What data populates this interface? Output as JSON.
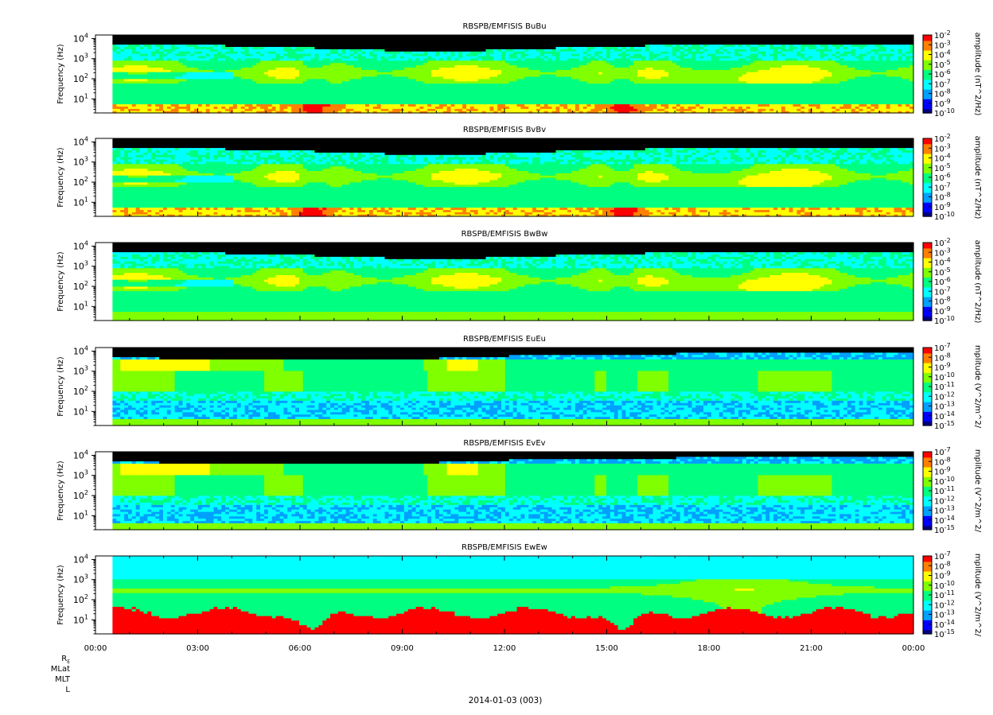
{
  "chart_data": {
    "type": "heatmap",
    "date_label": "2014-01-03 (003)",
    "time_ticks": [
      "00:00",
      "03:00",
      "06:00",
      "09:00",
      "12:00",
      "15:00",
      "18:00",
      "21:00",
      "00:00"
    ],
    "xlim_hours": [
      0,
      24
    ],
    "data_start_hours": 0.5,
    "orbit_labels": [
      "R",
      "MLat",
      "MLT",
      "L"
    ],
    "orbit_subscript": "E",
    "colormap": [
      "#000080",
      "#0000ff",
      "#00a0ff",
      "#00ffff",
      "#00ff80",
      "#80ff00",
      "#ffff00",
      "#ff8000",
      "#ff0000"
    ],
    "panels": [
      {
        "title": "RBSPB/EMFISIS  BuBu",
        "ylabel": "Frequency (Hz)",
        "yticks": [
          {
            "base": "10",
            "exp": "1"
          },
          {
            "base": "10",
            "exp": "2"
          },
          {
            "base": "10",
            "exp": "3"
          },
          {
            "base": "10",
            "exp": "4"
          }
        ],
        "ylim_hz": [
          2,
          15000
        ],
        "colorbar_label": "amplitude (nT^2/Hz)",
        "colorbar_range_log10": [
          -10,
          -2
        ],
        "colorbar_ticks": [
          {
            "base": "10",
            "exp": "-2"
          },
          {
            "base": "10",
            "exp": "-3"
          },
          {
            "base": "10",
            "exp": "-4"
          },
          {
            "base": "10",
            "exp": "-5"
          },
          {
            "base": "10",
            "exp": "-6"
          },
          {
            "base": "10",
            "exp": "-7"
          },
          {
            "base": "10",
            "exp": "-8"
          },
          {
            "base": "10",
            "exp": "-9"
          },
          {
            "base": "10",
            "exp": "-10"
          }
        ],
        "style": "b"
      },
      {
        "title": "RBSPB/EMFISIS  BvBv",
        "ylabel": "Frequency (Hz)",
        "yticks": [
          {
            "base": "10",
            "exp": "1"
          },
          {
            "base": "10",
            "exp": "2"
          },
          {
            "base": "10",
            "exp": "3"
          },
          {
            "base": "10",
            "exp": "4"
          }
        ],
        "ylim_hz": [
          2,
          15000
        ],
        "colorbar_label": "amplitude (nT^2/Hz)",
        "colorbar_range_log10": [
          -10,
          -2
        ],
        "colorbar_ticks": [
          {
            "base": "10",
            "exp": "-2"
          },
          {
            "base": "10",
            "exp": "-3"
          },
          {
            "base": "10",
            "exp": "-4"
          },
          {
            "base": "10",
            "exp": "-5"
          },
          {
            "base": "10",
            "exp": "-6"
          },
          {
            "base": "10",
            "exp": "-7"
          },
          {
            "base": "10",
            "exp": "-8"
          },
          {
            "base": "10",
            "exp": "-9"
          },
          {
            "base": "10",
            "exp": "-10"
          }
        ],
        "style": "b"
      },
      {
        "title": "RBSPB/EMFISIS  BwBw",
        "ylabel": "Frequency (Hz)",
        "yticks": [
          {
            "base": "10",
            "exp": "1"
          },
          {
            "base": "10",
            "exp": "2"
          },
          {
            "base": "10",
            "exp": "3"
          },
          {
            "base": "10",
            "exp": "4"
          }
        ],
        "ylim_hz": [
          2,
          15000
        ],
        "colorbar_label": "amplitude (nT^2/Hz)",
        "colorbar_range_log10": [
          -10,
          -2
        ],
        "colorbar_ticks": [
          {
            "base": "10",
            "exp": "-2"
          },
          {
            "base": "10",
            "exp": "-3"
          },
          {
            "base": "10",
            "exp": "-4"
          },
          {
            "base": "10",
            "exp": "-5"
          },
          {
            "base": "10",
            "exp": "-6"
          },
          {
            "base": "10",
            "exp": "-7"
          },
          {
            "base": "10",
            "exp": "-8"
          },
          {
            "base": "10",
            "exp": "-9"
          },
          {
            "base": "10",
            "exp": "-10"
          }
        ],
        "style": "bw"
      },
      {
        "title": "RBSPB/EMFISIS  EuEu",
        "ylabel": "Frequency (Hz)",
        "yticks": [
          {
            "base": "10",
            "exp": "1"
          },
          {
            "base": "10",
            "exp": "2"
          },
          {
            "base": "10",
            "exp": "3"
          },
          {
            "base": "10",
            "exp": "4"
          }
        ],
        "ylim_hz": [
          2,
          15000
        ],
        "colorbar_label": "mplitude (V^2/m^2/",
        "colorbar_range_log10": [
          -15,
          -7
        ],
        "colorbar_ticks": [
          {
            "base": "10",
            "exp": "-7"
          },
          {
            "base": "10",
            "exp": "-8"
          },
          {
            "base": "10",
            "exp": "-9"
          },
          {
            "base": "10",
            "exp": "-10"
          },
          {
            "base": "10",
            "exp": "-11"
          },
          {
            "base": "10",
            "exp": "-12"
          },
          {
            "base": "10",
            "exp": "-13"
          },
          {
            "base": "10",
            "exp": "-14"
          },
          {
            "base": "10",
            "exp": "-15"
          }
        ],
        "style": "e"
      },
      {
        "title": "RBSPB/EMFISIS  EvEv",
        "ylabel": "Frequency (Hz)",
        "yticks": [
          {
            "base": "10",
            "exp": "1"
          },
          {
            "base": "10",
            "exp": "2"
          },
          {
            "base": "10",
            "exp": "3"
          },
          {
            "base": "10",
            "exp": "4"
          }
        ],
        "ylim_hz": [
          2,
          15000
        ],
        "colorbar_label": "mplitude (V^2/m^2/",
        "colorbar_range_log10": [
          -15,
          -7
        ],
        "colorbar_ticks": [
          {
            "base": "10",
            "exp": "-7"
          },
          {
            "base": "10",
            "exp": "-8"
          },
          {
            "base": "10",
            "exp": "-9"
          },
          {
            "base": "10",
            "exp": "-10"
          },
          {
            "base": "10",
            "exp": "-11"
          },
          {
            "base": "10",
            "exp": "-12"
          },
          {
            "base": "10",
            "exp": "-13"
          },
          {
            "base": "10",
            "exp": "-14"
          },
          {
            "base": "10",
            "exp": "-15"
          }
        ],
        "style": "e"
      },
      {
        "title": "RBSPB/EMFISIS  EwEw",
        "ylabel": "Frequency (Hz)",
        "yticks": [
          {
            "base": "10",
            "exp": "1"
          },
          {
            "base": "10",
            "exp": "2"
          },
          {
            "base": "10",
            "exp": "3"
          },
          {
            "base": "10",
            "exp": "4"
          }
        ],
        "ylim_hz": [
          2,
          15000
        ],
        "colorbar_label": "mplitude (V^2/m^2/",
        "colorbar_range_log10": [
          -15,
          -7
        ],
        "colorbar_ticks": [
          {
            "base": "10",
            "exp": "-7"
          },
          {
            "base": "10",
            "exp": "-8"
          },
          {
            "base": "10",
            "exp": "-9"
          },
          {
            "base": "10",
            "exp": "-10"
          },
          {
            "base": "10",
            "exp": "-11"
          },
          {
            "base": "10",
            "exp": "-12"
          },
          {
            "base": "10",
            "exp": "-13"
          },
          {
            "base": "10",
            "exp": "-14"
          },
          {
            "base": "10",
            "exp": "-15"
          }
        ],
        "style": "ew"
      }
    ]
  }
}
